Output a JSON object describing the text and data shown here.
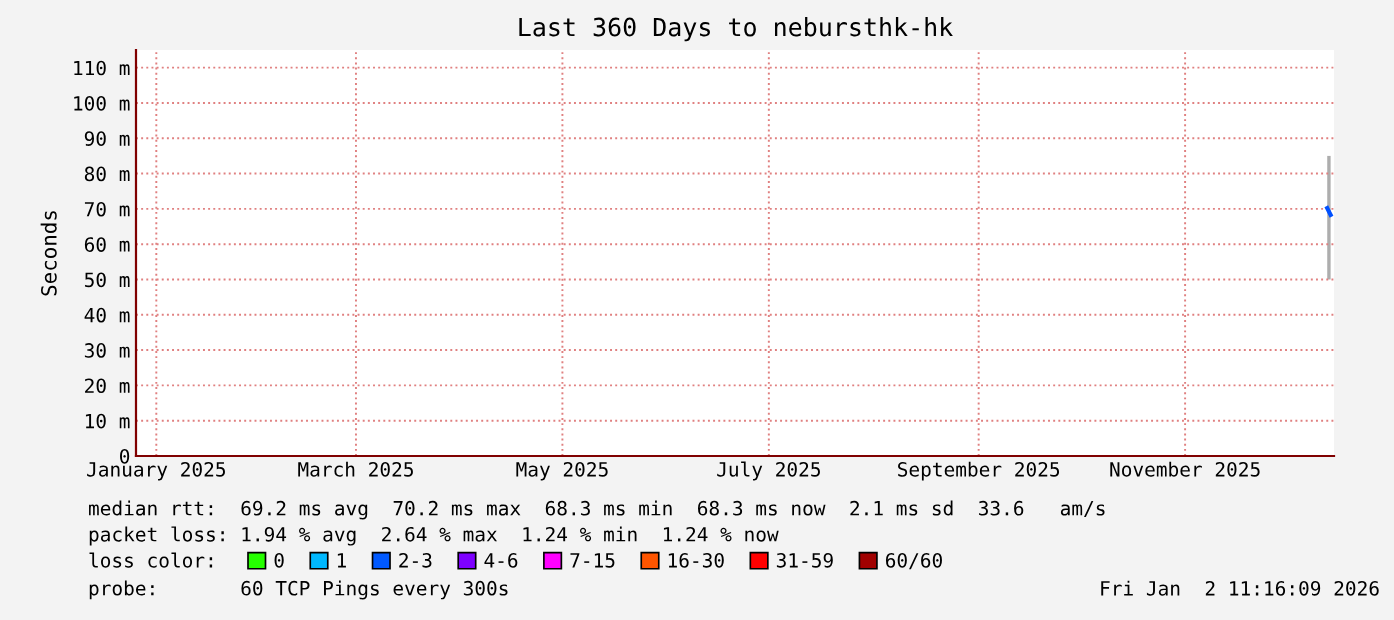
{
  "chart_data": {
    "type": "line",
    "title": "Last 360 Days to nebursthk-hk",
    "ylabel": "Seconds",
    "xlim": [
      "2024-12-26",
      "2025-12-15"
    ],
    "xticks": [
      {
        "value": "2025-01-01",
        "label": "January 2025"
      },
      {
        "value": "2025-03-01",
        "label": "March 2025"
      },
      {
        "value": "2025-05-01",
        "label": "May 2025"
      },
      {
        "value": "2025-07-01",
        "label": "July 2025"
      },
      {
        "value": "2025-09-01",
        "label": "September 2025"
      },
      {
        "value": "2025-11-01",
        "label": "November 2025"
      }
    ],
    "ylim": [
      0,
      115
    ],
    "yticks": [
      0,
      {
        "value": 10,
        "label": "10 m"
      },
      {
        "value": 20,
        "label": "20 m"
      },
      {
        "value": 30,
        "label": "30 m"
      },
      {
        "value": 40,
        "label": "40 m"
      },
      {
        "value": 50,
        "label": "50 m"
      },
      {
        "value": 60,
        "label": "60 m"
      },
      {
        "value": 70,
        "label": "70 m"
      },
      {
        "value": 80,
        "label": "80 m"
      },
      {
        "value": 90,
        "label": "90 m"
      },
      {
        "value": 100,
        "label": "100 m"
      },
      {
        "value": 110,
        "label": "110 m"
      }
    ],
    "grid": true,
    "legend": "bottom",
    "series": [
      {
        "color": "#0050ff",
        "x": [
          "2025-12-13",
          "2025-12-14"
        ],
        "values": [
          70.2,
          68.3
        ],
        "lower": [
          50,
          50
        ],
        "upper": [
          85,
          85
        ]
      },
      {
        "name": "0",
        "color": "#26ff00",
        "values": [
          null,
          null
        ]
      },
      {
        "name": "1",
        "color": "#00b8ff",
        "values": [
          null,
          null
        ]
      },
      {
        "name": "2-3",
        "color": "#0059ff",
        "values": [
          null,
          null
        ]
      },
      {
        "name": "4-6",
        "color": "#7e00ff",
        "values": [
          null,
          null
        ]
      },
      {
        "name": "7-15",
        "color": "#ff00ff",
        "values": [
          null,
          null
        ]
      },
      {
        "name": "16-30",
        "color": "#ff5500",
        "values": [
          null,
          null
        ]
      },
      {
        "name": "31-59",
        "color": "#ff0000",
        "values": [
          null,
          null
        ]
      },
      {
        "name": "60/60",
        "color": "#a10000",
        "values": [
          null,
          null
        ]
      }
    ],
    "annotations": [
      "median rtt:  69.2 ms avg  70.2 ms max  68.3 ms min  68.3 ms now  2.1 ms sd  33.6   am/s",
      "packet loss: 1.94 % avg  2.64 % max  1.24 % min  1.24 % now",
      "loss color:",
      "probe:       60 TCP Pings every 300s",
      "Fri Jan  2 11:16:09 2026"
    ]
  }
}
